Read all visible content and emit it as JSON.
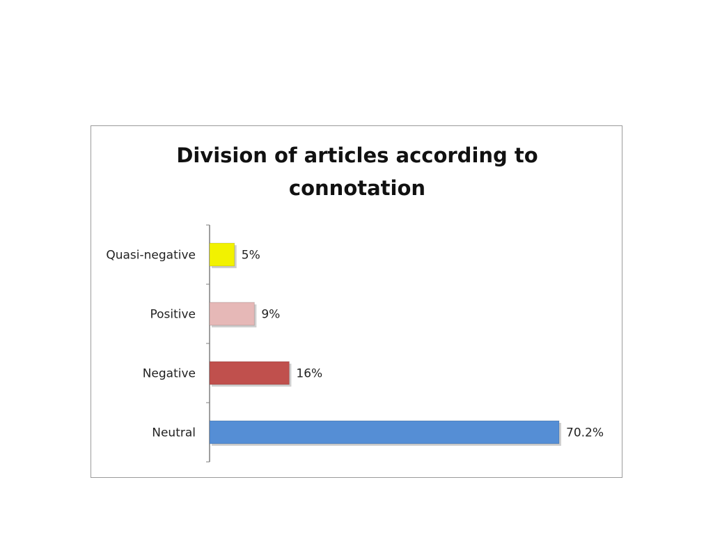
{
  "chart_data": {
    "type": "bar",
    "orientation": "horizontal",
    "title": "Division of articles according to connotation",
    "title_lines": [
      "Division of articles according to",
      "connotation"
    ],
    "categories": [
      "Quasi-negative",
      "Positive",
      "Negative",
      "Neutral"
    ],
    "values": [
      5,
      9,
      16,
      70.2
    ],
    "value_labels": [
      "5%",
      "9%",
      "16%",
      "70.2%"
    ],
    "bar_colors": [
      "#f2f200",
      "#e6b8b7",
      "#c0504d",
      "#558ed5"
    ],
    "xlim": [
      0,
      70.2
    ],
    "xlabel": "",
    "ylabel": "",
    "grid": false,
    "legend": "none"
  }
}
